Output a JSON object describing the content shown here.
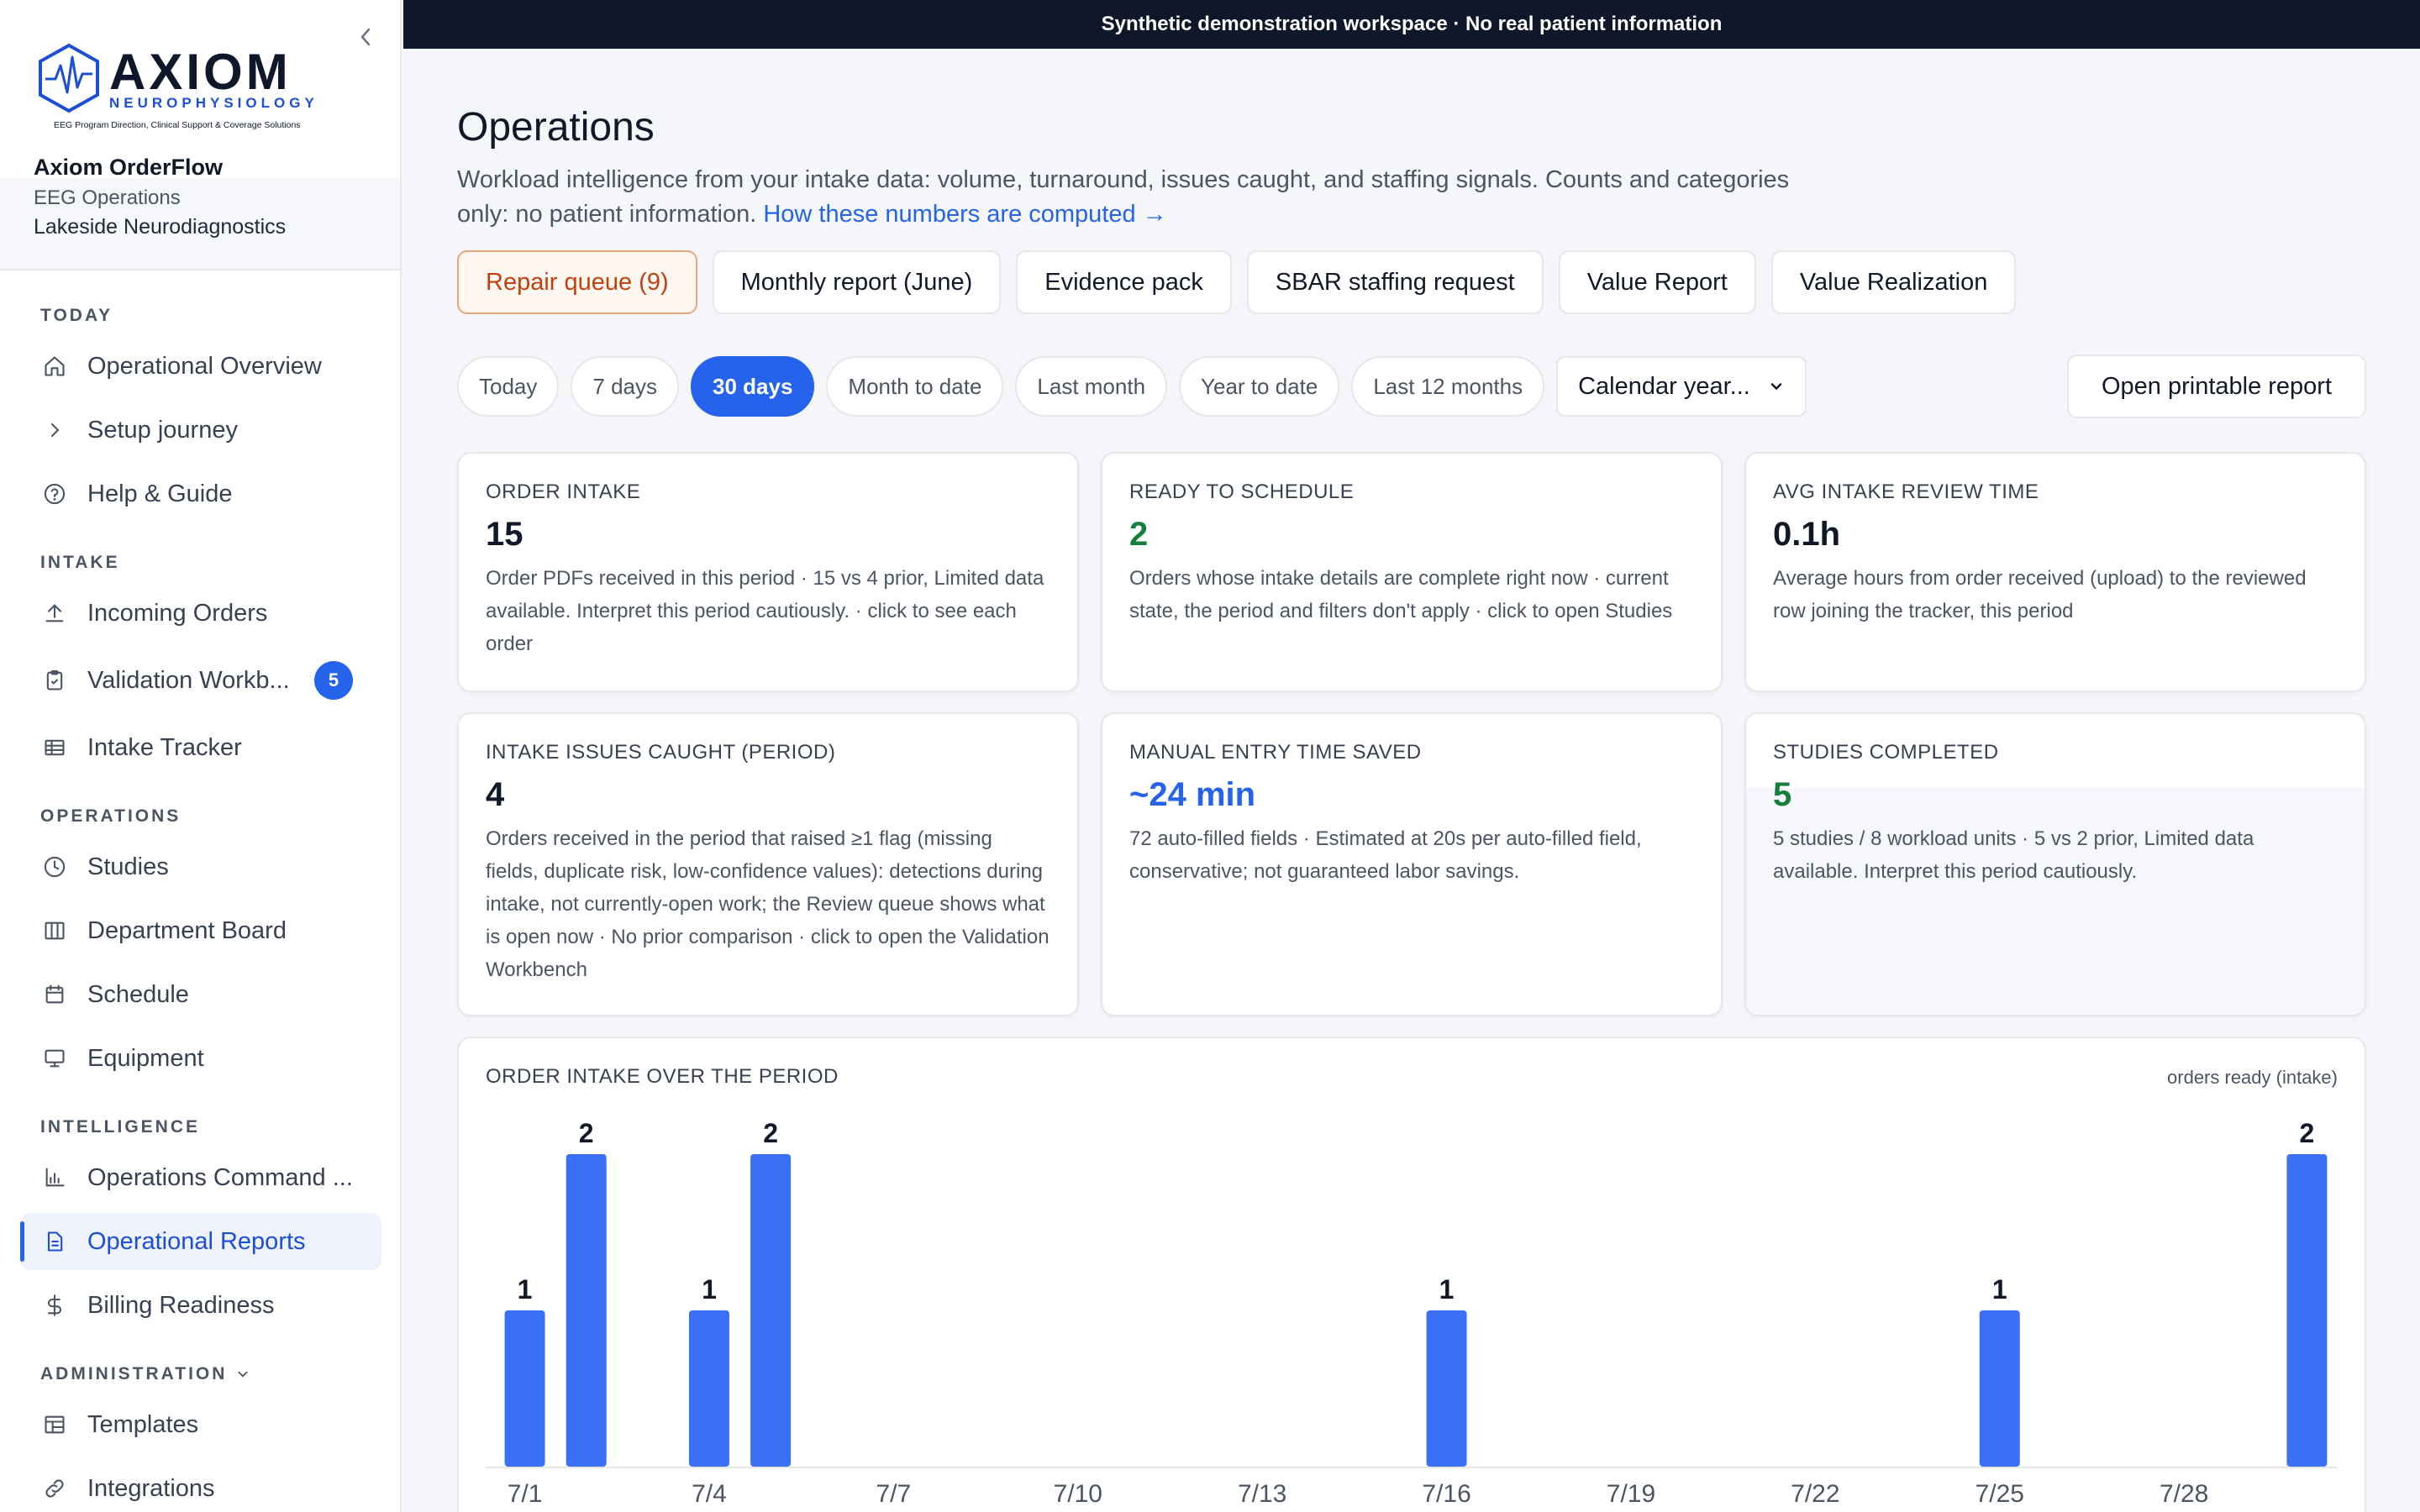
{
  "banner": "Synthetic demonstration workspace · No real patient information",
  "brand": {
    "logo_name": "AXIOM",
    "logo_sub": "NEUROPHYSIOLOGY",
    "logo_tagline": "EEG Program Direction, Clinical Support & Coverage Solutions"
  },
  "org": {
    "app": "Axiom OrderFlow",
    "dept": "EEG Operations",
    "site": "Lakeside Neurodiagnostics"
  },
  "sidebar": {
    "sections": [
      {
        "label": "TODAY",
        "items": [
          {
            "label": "Operational Overview",
            "icon": "home-icon"
          },
          {
            "label": "Setup journey",
            "icon": "chevron-right-icon"
          },
          {
            "label": "Help & Guide",
            "icon": "help-icon"
          }
        ]
      },
      {
        "label": "INTAKE",
        "items": [
          {
            "label": "Incoming Orders",
            "icon": "upload-icon"
          },
          {
            "label": "Validation Workb...",
            "icon": "clipboard-check-icon",
            "badge": "5"
          },
          {
            "label": "Intake Tracker",
            "icon": "table-icon"
          }
        ]
      },
      {
        "label": "OPERATIONS",
        "items": [
          {
            "label": "Studies",
            "icon": "clock-icon"
          },
          {
            "label": "Department Board",
            "icon": "columns-icon"
          },
          {
            "label": "Schedule",
            "icon": "calendar-icon"
          },
          {
            "label": "Equipment",
            "icon": "monitor-icon"
          }
        ]
      },
      {
        "label": "INTELLIGENCE",
        "items": [
          {
            "label": "Operations Command ...",
            "icon": "bar-chart-icon"
          },
          {
            "label": "Operational Reports",
            "icon": "document-icon",
            "active": true
          },
          {
            "label": "Billing Readiness",
            "icon": "dollar-icon"
          }
        ]
      },
      {
        "label": "ADMINISTRATION",
        "items": [
          {
            "label": "Templates",
            "icon": "layout-icon"
          },
          {
            "label": "Integrations",
            "icon": "link-icon"
          }
        ]
      }
    ]
  },
  "page": {
    "title": "Operations",
    "desc": "Workload intelligence from your intake data: volume, turnaround, issues caught, and staffing signals. Counts and categories only: no patient information.",
    "desc_link": "How these numbers are computed →"
  },
  "actions": [
    "Repair queue (9)",
    "Monthly report (June)",
    "Evidence pack",
    "SBAR staffing request",
    "Value Report",
    "Value Realization"
  ],
  "ranges": [
    "Today",
    "7 days",
    "30 days",
    "Month to date",
    "Last month",
    "Year to date",
    "Last 12 months"
  ],
  "range_selected": "30 days",
  "calendar_select": "Calendar year...",
  "print_button": "Open printable report",
  "cards": [
    {
      "label": "ORDER INTAKE",
      "value": "15",
      "desc": "Order PDFs received in this period · 15 vs 4 prior, Limited data available. Interpret this period cautiously. · click to see each order"
    },
    {
      "label": "READY TO SCHEDULE",
      "value": "2",
      "desc": "Orders whose intake details are complete right now · current state, the period and filters don't apply · click to open Studies"
    },
    {
      "label": "AVG INTAKE REVIEW TIME",
      "value": "0.1h",
      "desc": "Average hours from order received (upload) to the reviewed row joining the tracker, this period"
    },
    {
      "label": "INTAKE ISSUES CAUGHT (PERIOD)",
      "value": "4",
      "desc": "Orders received in the period that raised ≥1 flag (missing fields, duplicate risk, low-confidence values): detections during intake, not currently-open work; the Review queue shows what is open now · No prior comparison · click to open the Validation Workbench"
    },
    {
      "label": "MANUAL ENTRY TIME SAVED",
      "value": "~24 min",
      "desc": "72 auto-filled fields · Estimated at 20s per auto-filled field, conservative; not guaranteed labor savings."
    },
    {
      "label": "STUDIES COMPLETED",
      "value": "5",
      "desc": "5 studies / 8 workload units · 5 vs 2 prior, Limited data available. Interpret this period cautiously."
    }
  ],
  "colors": {
    "accent": "#2563eb",
    "bar": "#3b6ff5",
    "good": "#15803d",
    "warn": "#c2410c"
  },
  "chart_data": {
    "type": "bar",
    "title": "ORDER INTAKE OVER THE PERIOD",
    "legend": "orders ready (intake)",
    "x": [
      "7/1",
      "7/2",
      "7/3",
      "7/4",
      "7/5",
      "7/6",
      "7/7",
      "7/8",
      "7/9",
      "7/10",
      "7/11",
      "7/12",
      "7/13",
      "7/14",
      "7/15",
      "7/16",
      "7/17",
      "7/18",
      "7/19",
      "7/20",
      "7/21",
      "7/22",
      "7/23",
      "7/24",
      "7/25",
      "7/26",
      "7/27",
      "7/28",
      "7/29",
      "7/30"
    ],
    "values": [
      1,
      2,
      0,
      1,
      2,
      0,
      0,
      0,
      0,
      0,
      0,
      0,
      0,
      0,
      0,
      1,
      0,
      0,
      0,
      0,
      0,
      0,
      0,
      0,
      1,
      0,
      0,
      0,
      0,
      2
    ],
    "tick_labels": [
      "7/1",
      "7/4",
      "7/7",
      "7/10",
      "7/13",
      "7/16",
      "7/19",
      "7/22",
      "7/25",
      "7/28"
    ],
    "ylim": [
      0,
      2
    ]
  }
}
